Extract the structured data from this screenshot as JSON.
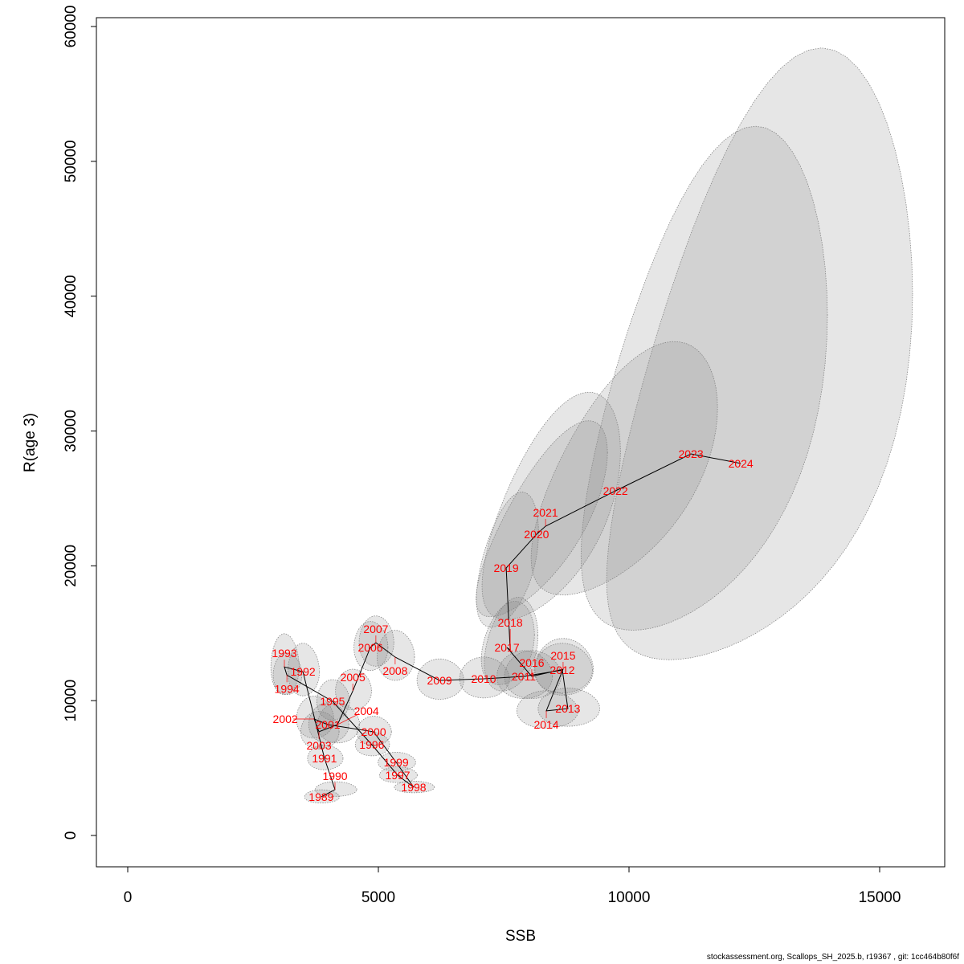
{
  "chart_data": {
    "type": "scatter",
    "subtype": "connected-path-with-confidence-ellipses",
    "title": "",
    "xlabel": "SSB",
    "ylabel": "R(age 3)",
    "xlim": [
      -600,
      16300
    ],
    "ylim": [
      -2300,
      60700
    ],
    "xticks": [
      0,
      5000,
      10000,
      15000
    ],
    "yticks": [
      0,
      10000,
      20000,
      30000,
      40000,
      50000,
      60000
    ],
    "grid": false,
    "colors": {
      "label": "#ff0000",
      "line": "#000000",
      "ellipse_fill": "rgba(128,128,128,0.2)",
      "ellipse_stroke": "#888888"
    },
    "points": [
      {
        "year": "1989",
        "ssb": 3860,
        "r": 2860,
        "ssb_log_hw": 0.09,
        "r_log_hw": 0.17,
        "corr": 0
      },
      {
        "year": "1990",
        "ssb": 4135,
        "r": 3400,
        "ssb_log_hw": 0.1,
        "r_log_hw": 0.16,
        "corr": 0
      },
      {
        "year": "1991",
        "ssb": 3925,
        "r": 5720,
        "ssb_log_hw": 0.09,
        "r_log_hw": 0.16,
        "corr": 0
      },
      {
        "year": "1992",
        "ssb": 3495,
        "r": 12150,
        "ssb_log_hw": 0.09,
        "r_log_hw": 0.16,
        "corr": 0
      },
      {
        "year": "1993",
        "ssb": 3125,
        "r": 12500,
        "ssb_log_hw": 0.09,
        "r_log_hw": 0.18,
        "corr": 0
      },
      {
        "year": "1994",
        "ssb": 3175,
        "r": 11900,
        "ssb_log_hw": 0.09,
        "r_log_hw": 0.13,
        "corr": 0
      },
      {
        "year": "1995",
        "ssb": 4085,
        "r": 9950,
        "ssb_log_hw": 0.08,
        "r_log_hw": 0.15,
        "corr": 0
      },
      {
        "year": "1996",
        "ssb": 4870,
        "r": 6730,
        "ssb_log_hw": 0.07,
        "r_log_hw": 0.13,
        "corr": 0
      },
      {
        "year": "1997",
        "ssb": 5385,
        "r": 4470,
        "ssb_log_hw": 0.07,
        "r_log_hw": 0.13,
        "corr": 0
      },
      {
        "year": "1998",
        "ssb": 5705,
        "r": 3575,
        "ssb_log_hw": 0.07,
        "r_log_hw": 0.12,
        "corr": 0
      },
      {
        "year": "1999",
        "ssb": 5355,
        "r": 5420,
        "ssb_log_hw": 0.07,
        "r_log_hw": 0.13,
        "corr": 0
      },
      {
        "year": "2000",
        "ssb": 4905,
        "r": 7690,
        "ssb_log_hw": 0.07,
        "r_log_hw": 0.14,
        "corr": 0
      },
      {
        "year": "2001",
        "ssb": 3990,
        "r": 8220,
        "ssb_log_hw": 0.1,
        "r_log_hw": 0.18,
        "corr": 0
      },
      {
        "year": "2002",
        "ssb": 3720,
        "r": 8640,
        "ssb_log_hw": 0.1,
        "r_log_hw": 0.18,
        "corr": 0
      },
      {
        "year": "2003",
        "ssb": 3815,
        "r": 7690,
        "ssb_log_hw": 0.1,
        "r_log_hw": 0.18,
        "corr": 0
      },
      {
        "year": "2004",
        "ssb": 4185,
        "r": 8220,
        "ssb_log_hw": 0.1,
        "r_log_hw": 0.18,
        "corr": 0
      },
      {
        "year": "2005",
        "ssb": 4490,
        "r": 10720,
        "ssb_log_hw": 0.08,
        "r_log_hw": 0.14,
        "corr": 0
      },
      {
        "year": "2006",
        "ssb": 4840,
        "r": 13940,
        "ssb_log_hw": 0.07,
        "r_log_hw": 0.13,
        "corr": 0
      },
      {
        "year": "2007",
        "ssb": 4950,
        "r": 14300,
        "ssb_log_hw": 0.07,
        "r_log_hw": 0.13,
        "corr": 0
      },
      {
        "year": "2008",
        "ssb": 5335,
        "r": 13230,
        "ssb_log_hw": 0.07,
        "r_log_hw": 0.14,
        "corr": 0
      },
      {
        "year": "2009",
        "ssb": 6220,
        "r": 11500,
        "ssb_log_hw": 0.075,
        "r_log_hw": 0.13,
        "corr": 0
      },
      {
        "year": "2010",
        "ssb": 7100,
        "r": 11620,
        "ssb_log_hw": 0.07,
        "r_log_hw": 0.13,
        "corr": 0
      },
      {
        "year": "2011",
        "ssb": 7900,
        "r": 11800,
        "ssb_log_hw": 0.07,
        "r_log_hw": 0.15,
        "corr": 0
      },
      {
        "year": "2012",
        "ssb": 8670,
        "r": 12270,
        "ssb_log_hw": 0.067,
        "r_log_hw": 0.15,
        "corr": 0
      },
      {
        "year": "2013",
        "ssb": 8780,
        "r": 9410,
        "ssb_log_hw": 0.07,
        "r_log_hw": 0.15,
        "corr": 0
      },
      {
        "year": "2014",
        "ssb": 8350,
        "r": 9240,
        "ssb_log_hw": 0.073,
        "r_log_hw": 0.15,
        "corr": 0
      },
      {
        "year": "2015",
        "ssb": 8685,
        "r": 12330,
        "ssb_log_hw": 0.067,
        "r_log_hw": 0.17,
        "corr": 0
      },
      {
        "year": "2016",
        "ssb": 8060,
        "r": 11800,
        "ssb_log_hw": 0.07,
        "r_log_hw": 0.15,
        "corr": 0
      },
      {
        "year": "2017",
        "ssb": 7565,
        "r": 13940,
        "ssb_log_hw": 0.07,
        "r_log_hw": 0.22,
        "corr": 0.3
      },
      {
        "year": "2018",
        "ssb": 7630,
        "r": 13760,
        "ssb_log_hw": 0.07,
        "r_log_hw": 0.25,
        "corr": 0.3
      },
      {
        "year": "2019",
        "ssb": 7550,
        "r": 19840,
        "ssb_log_hw": 0.082,
        "r_log_hw": 0.25,
        "corr": 0.5
      },
      {
        "year": "2020",
        "ssb": 8155,
        "r": 22340,
        "ssb_log_hw": 0.16,
        "r_log_hw": 0.32,
        "corr": 0.75
      },
      {
        "year": "2021",
        "ssb": 8335,
        "r": 22940,
        "ssb_log_hw": 0.165,
        "r_log_hw": 0.36,
        "corr": 0.6
      },
      {
        "year": "2022",
        "ssb": 9730,
        "r": 25560,
        "ssb_log_hw": 0.19,
        "r_log_hw": 0.36,
        "corr": 0.6
      },
      {
        "year": "2023",
        "ssb": 11235,
        "r": 28300,
        "ssb_log_hw": 0.217,
        "r_log_hw": 0.62,
        "corr": 0.5
      },
      {
        "year": "2024",
        "ssb": 12230,
        "r": 27590,
        "ssb_log_hw": 0.247,
        "r_log_hw": 0.75,
        "corr": 0.5
      }
    ]
  },
  "footer": "stockassessment.org, Scallops_SH_2025.b, r19367 , git: 1cc464b80f6f"
}
